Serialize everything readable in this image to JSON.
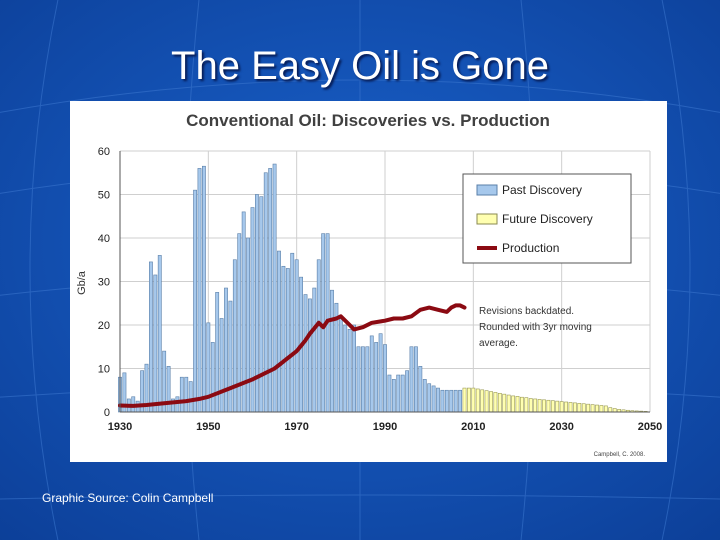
{
  "slide": {
    "title": "The Easy Oil is Gone",
    "source": "Graphic Source: Colin Campbell",
    "background_color": "#1452b8"
  },
  "chart_data": {
    "type": "bar",
    "title": "Conventional Oil: Discoveries vs. Production",
    "ylabel": "Gb/a",
    "xlabel": "",
    "xlim": [
      1930,
      2050
    ],
    "ylim": [
      0,
      60
    ],
    "x_ticks": [
      "1930",
      "1950",
      "1970",
      "1990",
      "2010",
      "2030",
      "2050"
    ],
    "y_ticks": [
      "0",
      "10",
      "20",
      "30",
      "40",
      "50",
      "60"
    ],
    "legend": [
      "Past Discovery",
      "Future Discovery",
      "Production"
    ],
    "legend_position": "top-right",
    "annotation": "Revisions backdated. Rounded with 3yr moving average.",
    "credit": "Campbell, C. 2008.",
    "colors": {
      "past_discovery": "#a6c8ec",
      "future_discovery": "#ffffb0",
      "production": "#8b0a12",
      "bar_outline": "#5a7fa8"
    },
    "series": [
      {
        "name": "Past Discovery",
        "type": "bar",
        "x": [
          1930,
          1931,
          1932,
          1933,
          1934,
          1935,
          1936,
          1937,
          1938,
          1939,
          1940,
          1941,
          1942,
          1943,
          1944,
          1945,
          1946,
          1947,
          1948,
          1949,
          1950,
          1951,
          1952,
          1953,
          1954,
          1955,
          1956,
          1957,
          1958,
          1959,
          1960,
          1961,
          1962,
          1963,
          1964,
          1965,
          1966,
          1967,
          1968,
          1969,
          1970,
          1971,
          1972,
          1973,
          1974,
          1975,
          1976,
          1977,
          1978,
          1979,
          1980,
          1981,
          1982,
          1983,
          1984,
          1985,
          1986,
          1987,
          1988,
          1989,
          1990,
          1991,
          1992,
          1993,
          1994,
          1995,
          1996,
          1997,
          1998,
          1999,
          2000,
          2001,
          2002,
          2003,
          2004,
          2005,
          2006,
          2007
        ],
        "values": [
          8,
          9,
          3,
          3.5,
          2.5,
          9.5,
          11,
          34.5,
          31.5,
          36,
          14,
          10.5,
          3,
          3.5,
          8,
          8,
          7,
          51,
          56,
          56.5,
          20.5,
          16,
          27.5,
          21.5,
          28.5,
          25.5,
          35,
          41,
          46,
          40,
          47,
          50,
          49.5,
          55,
          56,
          57,
          37,
          33.5,
          33,
          36.5,
          35,
          31,
          27,
          26,
          28.5,
          35,
          41,
          41,
          28,
          25,
          22,
          20,
          19,
          20,
          15,
          15,
          15,
          17.5,
          16,
          18,
          15.5,
          8.5,
          7.5,
          8.5,
          8.5,
          9.5,
          15,
          15,
          10.5,
          7.5,
          6.5,
          6,
          5.5,
          5,
          5,
          5,
          5,
          5
        ]
      },
      {
        "name": "Future Discovery",
        "type": "bar",
        "x": [
          2008,
          2009,
          2010,
          2011,
          2012,
          2013,
          2014,
          2015,
          2016,
          2017,
          2018,
          2019,
          2020,
          2021,
          2022,
          2023,
          2024,
          2025,
          2026,
          2027,
          2028,
          2029,
          2030,
          2031,
          2032,
          2033,
          2034,
          2035,
          2036,
          2037,
          2038,
          2039,
          2040,
          2041,
          2042,
          2043,
          2044,
          2045,
          2046,
          2047,
          2048,
          2049
        ],
        "values": [
          5.5,
          5.5,
          5.5,
          5.3,
          5.1,
          4.9,
          4.7,
          4.5,
          4.3,
          4.1,
          3.9,
          3.7,
          3.6,
          3.4,
          3.3,
          3.1,
          3.0,
          2.9,
          2.8,
          2.7,
          2.6,
          2.5,
          2.4,
          2.3,
          2.2,
          2.1,
          2.0,
          1.9,
          1.8,
          1.7,
          1.6,
          1.5,
          1.4,
          1.0,
          0.8,
          0.6,
          0.5,
          0.4,
          0.3,
          0.25,
          0.2,
          0.15
        ]
      },
      {
        "name": "Production",
        "type": "line",
        "x": [
          1930,
          1933,
          1936,
          1940,
          1945,
          1948,
          1950,
          1955,
          1960,
          1965,
          1970,
          1972,
          1973,
          1975,
          1976,
          1977,
          1979,
          1980,
          1982,
          1983,
          1985,
          1987,
          1990,
          1992,
          1994,
          1996,
          1998,
          2000,
          2002,
          2004,
          2005,
          2006,
          2007,
          2008
        ],
        "values": [
          1.5,
          1.4,
          1.6,
          2,
          2.5,
          3,
          3.5,
          5.5,
          7.5,
          10,
          14,
          16.5,
          18,
          20.5,
          19.5,
          21,
          21.5,
          22,
          20,
          19,
          19.5,
          20.5,
          21,
          21.5,
          21.5,
          22,
          23.5,
          24,
          23.5,
          23,
          24,
          24.5,
          24.5,
          24
        ]
      }
    ]
  }
}
